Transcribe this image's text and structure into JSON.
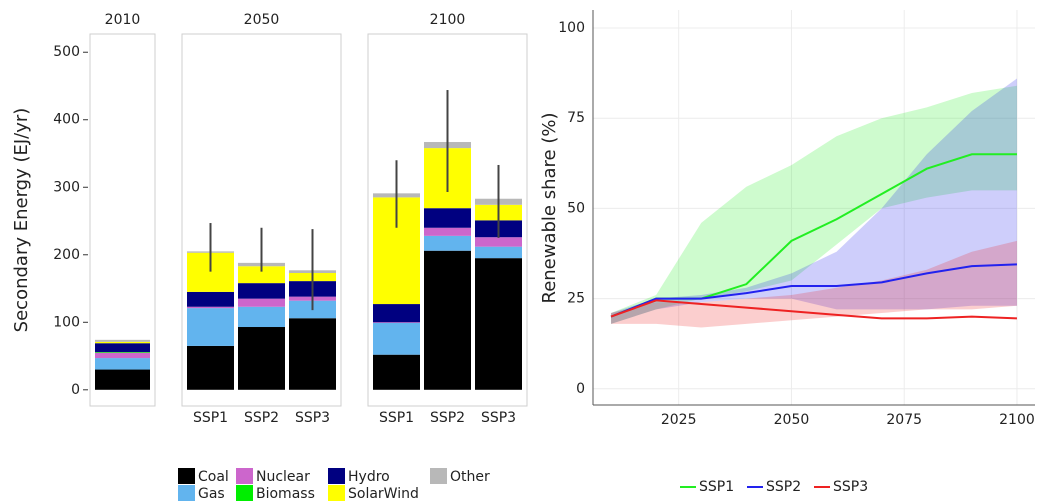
{
  "chart_data": [
    {
      "type": "stacked_bar",
      "y_label": "Secondary Energy (EJ/yr)",
      "categories": [
        null,
        "SSP1",
        "SSP2",
        "SSP3",
        "SSP1",
        "SSP2",
        "SSP3"
      ],
      "facets": [
        "2010",
        "2050",
        "2050",
        "2050",
        "2100",
        "2100",
        "2100"
      ],
      "ylim": [
        -24,
        527
      ],
      "yticks": [
        0,
        100,
        200,
        300,
        400,
        500
      ],
      "series": [
        {
          "name": "Coal",
          "color": "#000000",
          "values": [
            30,
            65,
            93,
            106,
            52,
            206,
            195
          ]
        },
        {
          "name": "Gas",
          "color": "#62b4ee",
          "values": [
            17,
            56,
            30,
            26,
            47,
            22,
            17
          ]
        },
        {
          "name": "Nuclear",
          "color": "#cc66cc",
          "values": [
            8,
            2,
            12,
            6,
            1,
            12,
            14
          ]
        },
        {
          "name": "Biomass",
          "color": "#00ee00",
          "values": [
            1,
            0,
            0,
            0,
            0,
            0,
            0
          ]
        },
        {
          "name": "Hydro",
          "color": "#000080",
          "values": [
            13,
            22,
            23,
            23,
            27,
            29,
            25
          ]
        },
        {
          "name": "SolarWind",
          "color": "#ffff00",
          "values": [
            2,
            58,
            25,
            12,
            158,
            89,
            23
          ]
        },
        {
          "name": "Other",
          "color": "#b8b8b8",
          "values": [
            3,
            2,
            5,
            4,
            6,
            9,
            9
          ]
        }
      ],
      "error_ranges": [
        null,
        [
          175,
          247
        ],
        [
          175,
          240
        ],
        [
          118,
          238
        ],
        [
          240,
          340
        ],
        [
          293,
          444
        ],
        [
          225,
          333
        ]
      ]
    },
    {
      "type": "line_band",
      "y_label": "Renewable share (%)",
      "x": [
        2010,
        2020,
        2030,
        2040,
        2050,
        2060,
        2070,
        2080,
        2090,
        2100
      ],
      "xlim": [
        2006,
        2104
      ],
      "xticks": [
        2025,
        2050,
        2075,
        2100
      ],
      "ylim": [
        -4.5,
        105
      ],
      "yticks": [
        0,
        25,
        50,
        75,
        100
      ],
      "grid": true,
      "series": [
        {
          "name": "SSP1",
          "color": "#22ee22",
          "values": [
            20,
            25,
            25,
            29,
            41,
            47,
            54,
            61,
            65,
            65
          ],
          "lower": [
            18,
            22,
            25,
            27,
            30,
            40,
            50,
            53,
            55,
            55
          ],
          "upper": [
            21,
            26,
            46,
            56,
            62,
            70,
            75,
            78,
            82,
            84
          ]
        },
        {
          "name": "SSP2",
          "color": "#2222ee",
          "values": [
            20,
            25,
            25,
            26.5,
            28.5,
            28.5,
            29.5,
            32,
            34,
            34.5
          ],
          "lower": [
            18,
            22,
            24,
            25,
            25,
            22,
            22,
            22,
            23,
            23
          ],
          "upper": [
            21,
            25,
            26,
            28,
            32,
            38,
            50,
            65,
            77,
            86
          ]
        },
        {
          "name": "SSP3",
          "color": "#ee2222",
          "values": [
            20,
            24.5,
            23.5,
            22.5,
            21.5,
            20.5,
            19.5,
            19.5,
            20,
            19.5
          ],
          "lower": [
            18,
            18,
            17,
            18,
            19,
            20,
            21,
            22,
            22,
            23
          ],
          "upper": [
            21,
            24,
            24,
            25,
            26,
            28,
            30,
            33,
            38,
            41
          ]
        }
      ]
    }
  ]
}
